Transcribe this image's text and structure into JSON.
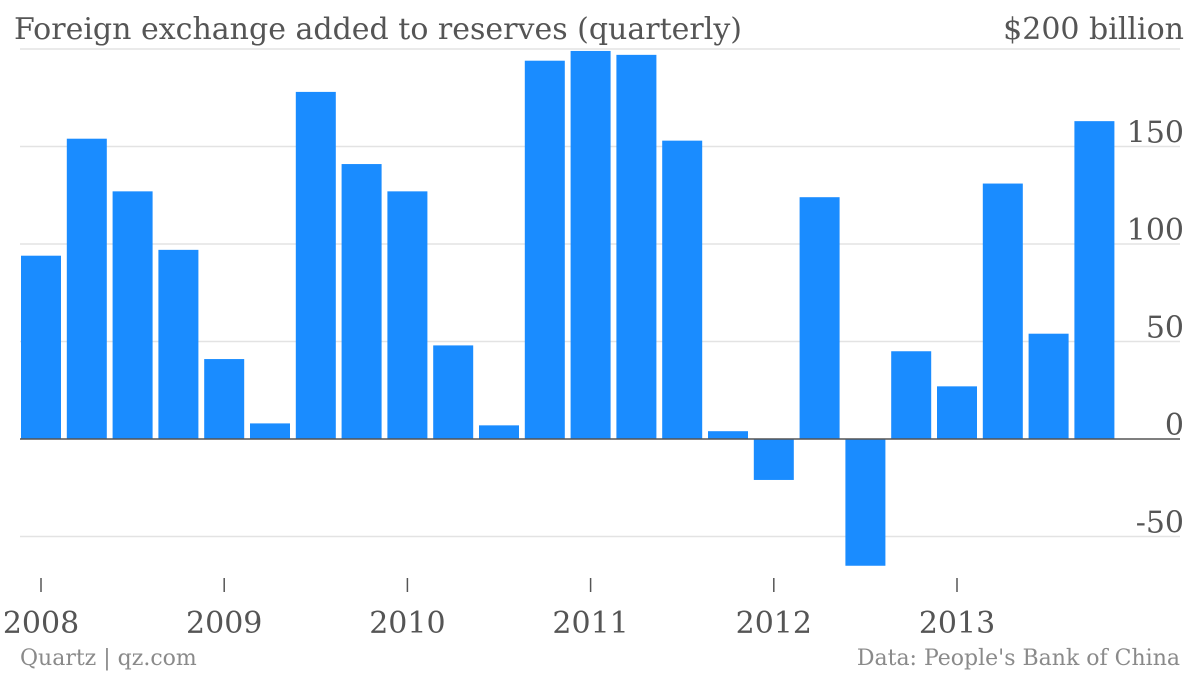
{
  "chart_data": {
    "type": "bar",
    "title": "Foreign exchange added to reserves (quarterly)",
    "top_tick_label": "$200 billion",
    "x": [
      "2008Q1",
      "2008Q2",
      "2008Q3",
      "2008Q4",
      "2009Q1",
      "2009Q2",
      "2009Q3",
      "2009Q4",
      "2010Q1",
      "2010Q2",
      "2010Q3",
      "2010Q4",
      "2011Q1",
      "2011Q2",
      "2011Q3",
      "2011Q4",
      "2012Q1",
      "2012Q2",
      "2012Q3",
      "2012Q4",
      "2013Q1",
      "2013Q2",
      "2013Q3",
      "2013Q4"
    ],
    "values": [
      94,
      154,
      127,
      97,
      41,
      8,
      178,
      141,
      127,
      48,
      7,
      194,
      199,
      197,
      153,
      4,
      -21,
      124,
      -65,
      45,
      27,
      131,
      54,
      163
    ],
    "ylim": [
      -70,
      200
    ],
    "yticks": [
      -50,
      0,
      50,
      100,
      150,
      200
    ],
    "ytick_labels": [
      "-50",
      "0",
      "50",
      "100",
      "150",
      "$200 billion"
    ],
    "xtick_labels": [
      "2008",
      "2009",
      "2010",
      "2011",
      "2012",
      "2013"
    ],
    "grid": true,
    "bar_color": "#1a8cff",
    "grid_color": "#e3e3e3",
    "axis_color": "#555555",
    "text_color": "#555555"
  },
  "footer": {
    "credit": "Quartz | qz.com",
    "source": "Data: People's Bank of China"
  }
}
